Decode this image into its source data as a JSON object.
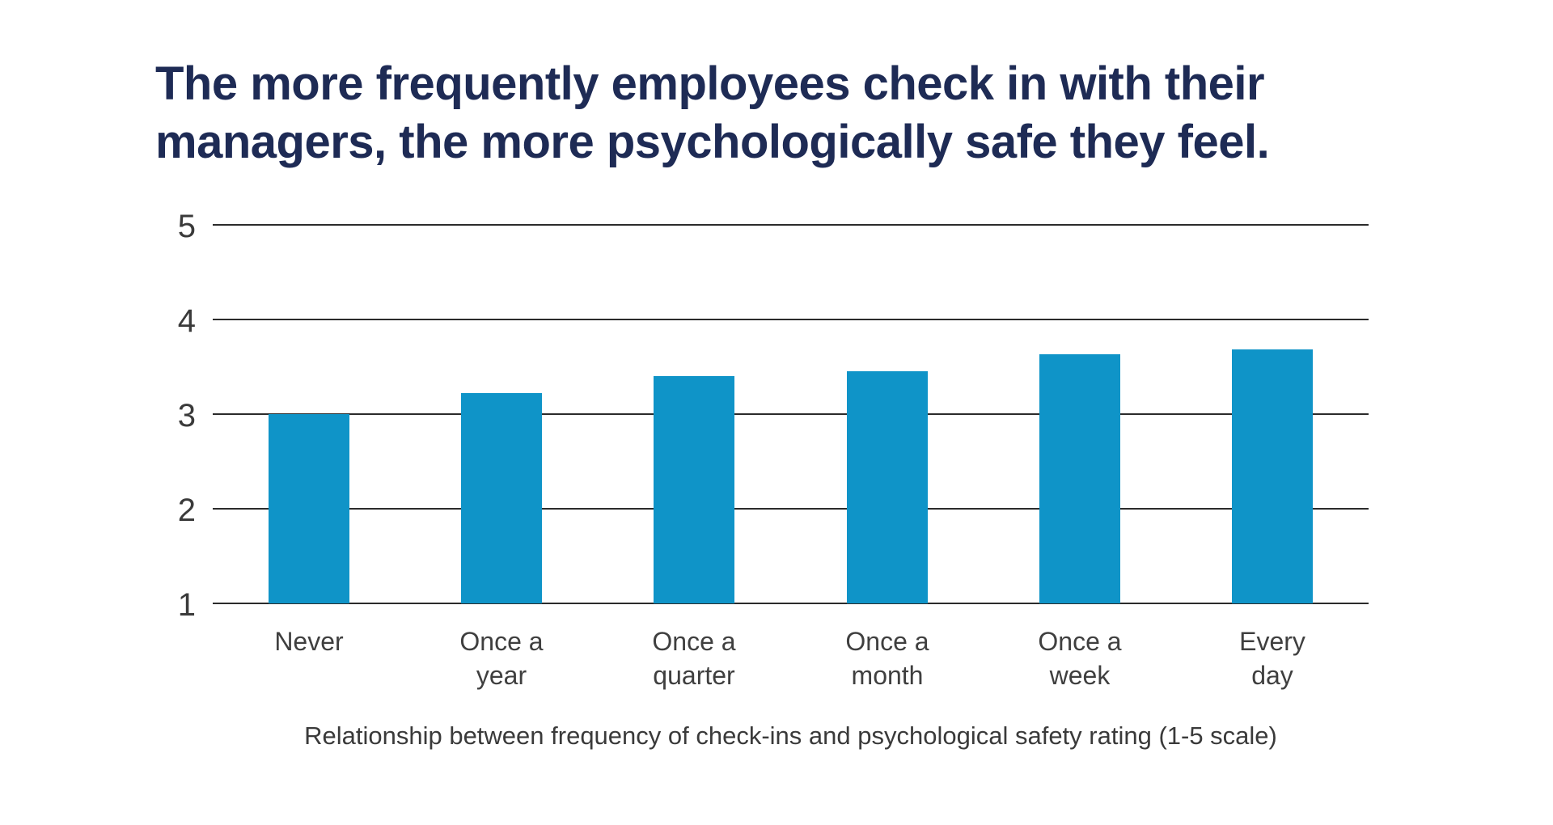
{
  "chart": {
    "title": "The more frequently employees check in with their\nmanagers, the more psychologically safe they feel.",
    "caption": "Relationship between frequency of check-ins and psychological safety rating (1-5 scale)"
  },
  "chart_data": {
    "type": "bar",
    "categories": [
      "Never",
      "Once a\nyear",
      "Once a\nquarter",
      "Once a\nmonth",
      "Once a\nweek",
      "Every\nday"
    ],
    "values": [
      3.0,
      3.22,
      3.4,
      3.45,
      3.63,
      3.68
    ],
    "title": "The more frequently employees check in with their managers, the more psychologically safe they feel.",
    "caption": "Relationship between frequency of check-ins and psychological safety rating (1-5 scale)",
    "xlabel": "",
    "ylabel": "",
    "ylim": [
      1,
      5
    ],
    "yticks": [
      1,
      2,
      3,
      4,
      5
    ],
    "grid": true,
    "legend": false,
    "colors": {
      "bar": "#0f94c8",
      "title": "#1e2b55",
      "gridline": "#2b2b2b",
      "tick_label": "#3a3a3a",
      "category_label": "#3f3f3f",
      "caption": "#3a3a3a",
      "background": "#ffffff"
    }
  }
}
